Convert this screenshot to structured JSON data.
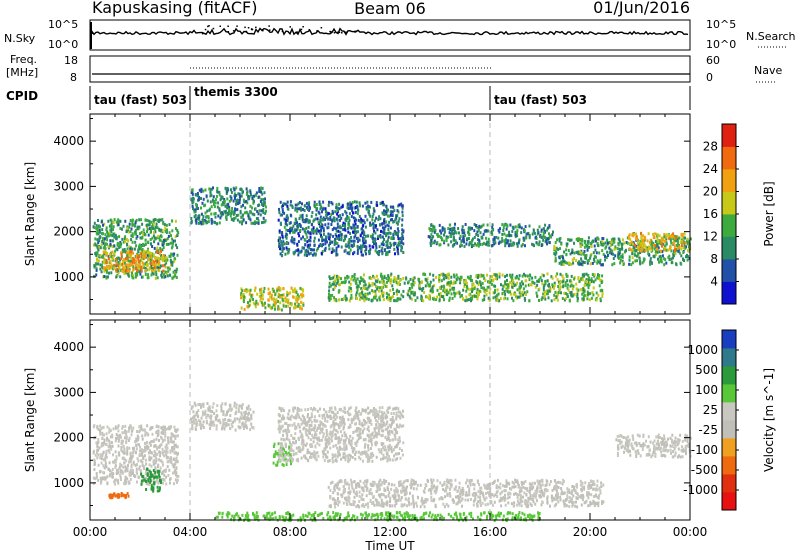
{
  "header": {
    "station": "Kapuskasing (fitACF)",
    "beam": "Beam 06",
    "date": "01/Jun/2016"
  },
  "sky_panel": {
    "left_label": "N.Sky",
    "left_ticks": [
      "10^5",
      "10^0"
    ],
    "right_ticks": [
      "10^5",
      "10^0"
    ],
    "right_label": "N.Search"
  },
  "freq_panel": {
    "left_label_1": "Freq.",
    "left_label_2": "[MHz]",
    "left_ticks": [
      "18",
      "8"
    ],
    "right_ticks": [
      "60",
      "0"
    ],
    "right_label": "Nave"
  },
  "cpid_panel": {
    "label": "CPID",
    "segments": [
      {
        "start_hour": 0,
        "end_hour": 4,
        "text": "tau (fast) 503"
      },
      {
        "start_hour": 4,
        "end_hour": 16,
        "text": "themis 3300"
      },
      {
        "start_hour": 16,
        "end_hour": 24,
        "text": "tau (fast) 503"
      }
    ]
  },
  "colors": {
    "power": [
      "#1010d0",
      "#2050a8",
      "#2a8a64",
      "#3caa3c",
      "#c8c818",
      "#f0a010",
      "#f06a10",
      "#e02010"
    ],
    "velocity": [
      "#1a3ec0",
      "#2e7a8a",
      "#2a9a3a",
      "#58c838",
      "#c8c8c0",
      "#c0c0b8",
      "#f0a020",
      "#f06a10",
      "#e03010",
      "#e81010"
    ]
  },
  "chart_data": [
    {
      "type": "heatmap",
      "name": "power",
      "ylabel": "Slant Range [km]",
      "yticks": [
        1000,
        2000,
        3000,
        4000
      ],
      "ylim": [
        180,
        4600
      ],
      "xlim": [
        0,
        24
      ],
      "x_divisions": [
        4,
        16
      ],
      "colorbar": {
        "label": "Power [dB]",
        "ticks": [
          "28",
          "24",
          "20",
          "16",
          "12",
          "8",
          "4"
        ],
        "range": [
          0,
          32
        ]
      },
      "blobs": [
        {
          "t0": 0.1,
          "t1": 3.5,
          "r0": 1000,
          "r1": 2300,
          "value": 12
        },
        {
          "t0": 0.5,
          "t1": 3.0,
          "r0": 1150,
          "r1": 1600,
          "value": 22
        },
        {
          "t0": 4.0,
          "t1": 7.0,
          "r0": 2200,
          "r1": 3000,
          "value": 10
        },
        {
          "t0": 7.5,
          "t1": 12.5,
          "r0": 1500,
          "r1": 2700,
          "value": 8
        },
        {
          "t0": 6.0,
          "t1": 8.5,
          "r0": 300,
          "r1": 800,
          "value": 18
        },
        {
          "t0": 9.5,
          "t1": 20.5,
          "r0": 500,
          "r1": 1100,
          "value": 14
        },
        {
          "t0": 13.5,
          "t1": 18.5,
          "r0": 1700,
          "r1": 2200,
          "value": 10
        },
        {
          "t0": 18.5,
          "t1": 24.0,
          "r0": 1300,
          "r1": 1900,
          "value": 12
        },
        {
          "t0": 21.5,
          "t1": 24.0,
          "r0": 1600,
          "r1": 2000,
          "value": 20
        }
      ]
    },
    {
      "type": "heatmap",
      "name": "velocity",
      "ylabel": "Slant Range [km]",
      "yticks": [
        1000,
        2000,
        3000,
        4000
      ],
      "ylim": [
        180,
        4600
      ],
      "xlim": [
        0,
        24
      ],
      "xticks": [
        "00:00",
        "04:00",
        "08:00",
        "12:00",
        "16:00",
        "20:00",
        "00:00"
      ],
      "xlabel": "Time UT",
      "x_divisions": [
        4,
        16
      ],
      "colorbar": {
        "label": "Velocity [m s^-1]",
        "ticks": [
          "1000",
          "500",
          "100",
          "25",
          "-25",
          "-100",
          "-500",
          "-1000"
        ]
      },
      "blobs": [
        {
          "t0": 0.1,
          "t1": 3.5,
          "r0": 1000,
          "r1": 2300,
          "value": 0
        },
        {
          "t0": 2.0,
          "t1": 2.8,
          "r0": 850,
          "r1": 1350,
          "value": 150
        },
        {
          "t0": 0.7,
          "t1": 1.5,
          "r0": 700,
          "r1": 800,
          "value": -400
        },
        {
          "t0": 4.0,
          "t1": 6.5,
          "r0": 2200,
          "r1": 2800,
          "value": 0
        },
        {
          "t0": 7.3,
          "t1": 8.0,
          "r0": 1400,
          "r1": 1900,
          "value": 80
        },
        {
          "t0": 7.5,
          "t1": 12.5,
          "r0": 1500,
          "r1": 2700,
          "value": 0
        },
        {
          "t0": 9.5,
          "t1": 20.5,
          "r0": 500,
          "r1": 1100,
          "value": 0
        },
        {
          "t0": 5.0,
          "t1": 18.0,
          "r0": 200,
          "r1": 380,
          "value": 60
        },
        {
          "t0": 21.0,
          "t1": 24.0,
          "r0": 1600,
          "r1": 2100,
          "value": 0
        }
      ]
    }
  ]
}
